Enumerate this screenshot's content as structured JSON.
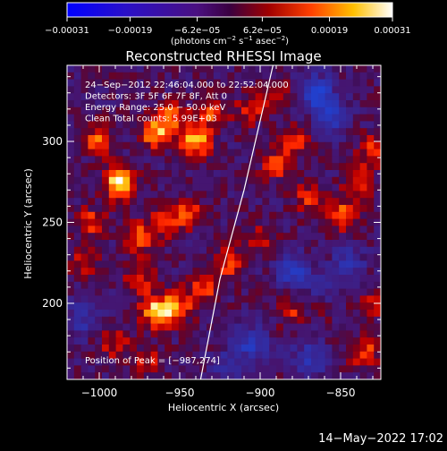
{
  "chart_data": {
    "type": "heatmap",
    "title": "Reconstructed RHESSI Image",
    "xlabel": "Heliocentric X (arcsec)",
    "ylabel": "Heliocentric Y (arcsec)",
    "xlim": [
      -1020,
      -825
    ],
    "ylim": [
      153,
      347
    ],
    "xticks": [
      -1000,
      -950,
      -900,
      -850
    ],
    "yticks": [
      200,
      250,
      300
    ],
    "xtick_labels": [
      "−1000",
      "−950",
      "−900",
      "−850"
    ],
    "ytick_labels": [
      "200",
      "250",
      "300"
    ],
    "colorbar": {
      "min": -0.00031,
      "max": 0.00031,
      "ticks": [
        -0.00031,
        -0.00019,
        -6.2e-05,
        6.2e-05,
        0.00019,
        0.00031
      ],
      "tick_labels": [
        "−0.00031",
        "−0.00019",
        "−6.2e−05",
        "6.2e−05",
        "0.00019",
        "0.00031"
      ],
      "unit_parts": [
        "(photons cm",
        "−2",
        " s",
        "−1",
        " asec",
        "−2",
        ")"
      ],
      "colormap": "blue-purple-red-yellow-white"
    },
    "annotations": [
      "24−Sep−2012 22:46:04.000 to 22:52:04.000",
      "Detectors: 3F 5F 6F 7F 8F, Att 0",
      "Energy Range: 25.0 − 50.0 keV",
      "Clean     Total counts: 5.99E+03"
    ],
    "peak_label": "Position of Peak = [−987,274]",
    "peak": [
      -987,
      274
    ],
    "limb_x": [
      -937,
      -925,
      -910,
      -892
    ],
    "limb_y": [
      153,
      215,
      270,
      347
    ],
    "blobs": [
      {
        "x": -987,
        "y": 274,
        "intensity": 1.0
      },
      {
        "x": -1000,
        "y": 300,
        "intensity": 0.55
      },
      {
        "x": -965,
        "y": 305,
        "intensity": 0.7
      },
      {
        "x": -955,
        "y": 315,
        "intensity": 0.55
      },
      {
        "x": -940,
        "y": 300,
        "intensity": 0.8
      },
      {
        "x": -930,
        "y": 318,
        "intensity": 0.55
      },
      {
        "x": -905,
        "y": 320,
        "intensity": 0.45
      },
      {
        "x": -975,
        "y": 240,
        "intensity": 0.55
      },
      {
        "x": -960,
        "y": 250,
        "intensity": 0.45
      },
      {
        "x": -945,
        "y": 255,
        "intensity": 0.5
      },
      {
        "x": -1005,
        "y": 250,
        "intensity": 0.45
      },
      {
        "x": -1010,
        "y": 225,
        "intensity": 0.4
      },
      {
        "x": -975,
        "y": 215,
        "intensity": 0.45
      },
      {
        "x": -965,
        "y": 195,
        "intensity": 0.8
      },
      {
        "x": -952,
        "y": 197,
        "intensity": 0.7
      },
      {
        "x": -935,
        "y": 210,
        "intensity": 0.55
      },
      {
        "x": -920,
        "y": 225,
        "intensity": 0.5
      },
      {
        "x": -990,
        "y": 175,
        "intensity": 0.4
      },
      {
        "x": -970,
        "y": 165,
        "intensity": 0.35
      },
      {
        "x": -890,
        "y": 285,
        "intensity": 0.45
      },
      {
        "x": -878,
        "y": 300,
        "intensity": 0.4
      },
      {
        "x": -850,
        "y": 255,
        "intensity": 0.6
      },
      {
        "x": -838,
        "y": 275,
        "intensity": 0.5
      },
      {
        "x": -870,
        "y": 265,
        "intensity": 0.4
      },
      {
        "x": -830,
        "y": 295,
        "intensity": 0.4
      },
      {
        "x": -880,
        "y": 195,
        "intensity": 0.4
      },
      {
        "x": -860,
        "y": 200,
        "intensity": 0.35
      },
      {
        "x": -835,
        "y": 170,
        "intensity": 0.5
      },
      {
        "x": -830,
        "y": 200,
        "intensity": 0.4
      },
      {
        "x": -900,
        "y": 240,
        "intensity": 0.35
      },
      {
        "x": -890,
        "y": 330,
        "intensity": 0.3
      }
    ],
    "negatives": [
      {
        "x": -865,
        "y": 330,
        "intensity": 0.7
      },
      {
        "x": -855,
        "y": 315,
        "intensity": 0.5
      },
      {
        "x": -880,
        "y": 220,
        "intensity": 0.6
      },
      {
        "x": -860,
        "y": 205,
        "intensity": 0.5
      },
      {
        "x": -905,
        "y": 175,
        "intensity": 0.55
      },
      {
        "x": -870,
        "y": 165,
        "intensity": 0.5
      },
      {
        "x": -845,
        "y": 225,
        "intensity": 0.4
      },
      {
        "x": -1012,
        "y": 190,
        "intensity": 0.4
      },
      {
        "x": -920,
        "y": 160,
        "intensity": 0.35
      }
    ]
  },
  "footer": {
    "date": "14−May−2022 17:02"
  }
}
